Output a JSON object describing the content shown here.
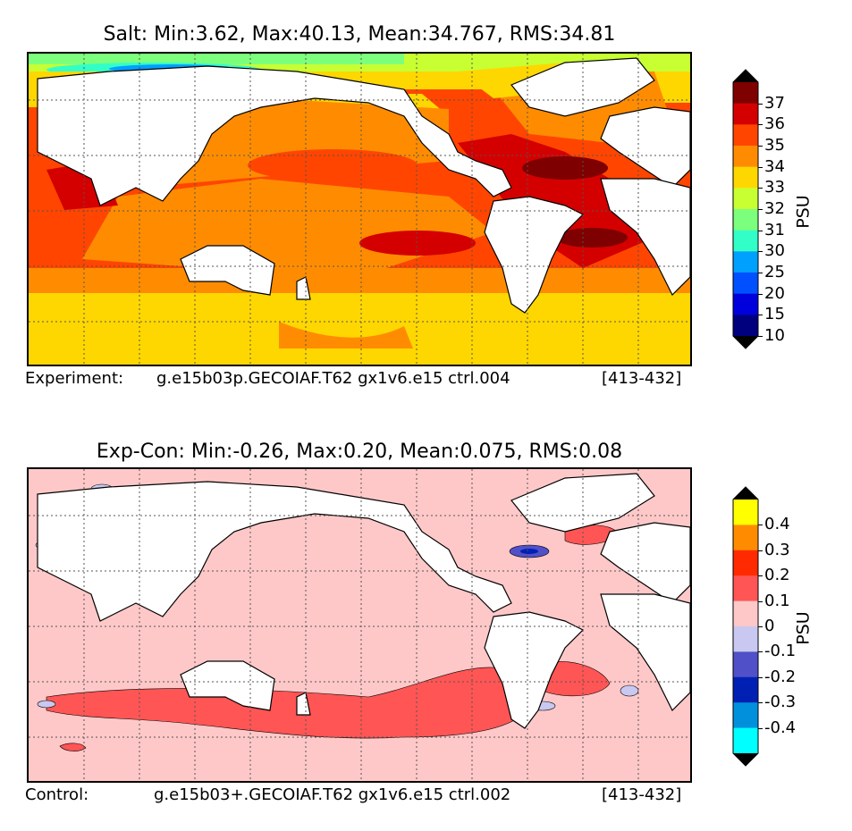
{
  "panel_top": {
    "title": "Salt: Min:3.62, Max:40.13, Mean:34.767, RMS:34.81",
    "caption_left": "Experiment:",
    "caption_mid": "g.e15b03p.GECOIAF.T62 gx1v6.e15 ctrl.004",
    "caption_right": "[413-432]",
    "colorbar": {
      "unit": "PSU",
      "labels": [
        "37",
        "36",
        "35",
        "34",
        "33",
        "32",
        "31",
        "30",
        "25",
        "20",
        "15",
        "10"
      ],
      "colors": [
        "#7f0000",
        "#d40000",
        "#ff4500",
        "#ff8c00",
        "#ffd700",
        "#c8ff32",
        "#7cff7c",
        "#32ffc8",
        "#00a0ff",
        "#0050ff",
        "#0000dc",
        "#00007f"
      ],
      "over_color": "#000000",
      "under_color": "#000000"
    }
  },
  "panel_bottom": {
    "title": "Exp-Con: Min:-0.26, Max:0.20, Mean:0.075, RMS:0.08",
    "caption_left": "Control:",
    "caption_mid": "g.e15b03+.GECOIAF.T62 gx1v6.e15 ctrl.002",
    "caption_right": "[413-432]",
    "colorbar": {
      "unit": "PSU",
      "labels": [
        "0.4",
        "0.3",
        "0.2",
        "0.1",
        "0",
        "-0.1",
        "-0.2",
        "-0.3",
        "-0.4"
      ],
      "colors": [
        "#ffff00",
        "#ff8c00",
        "#ff2a00",
        "#ff5555",
        "#ffc8c8",
        "#c8c8f0",
        "#5050c8",
        "#0020b4",
        "#0090dc",
        "#00ffff"
      ],
      "over_color": "#000000",
      "under_color": "#000000"
    }
  }
}
